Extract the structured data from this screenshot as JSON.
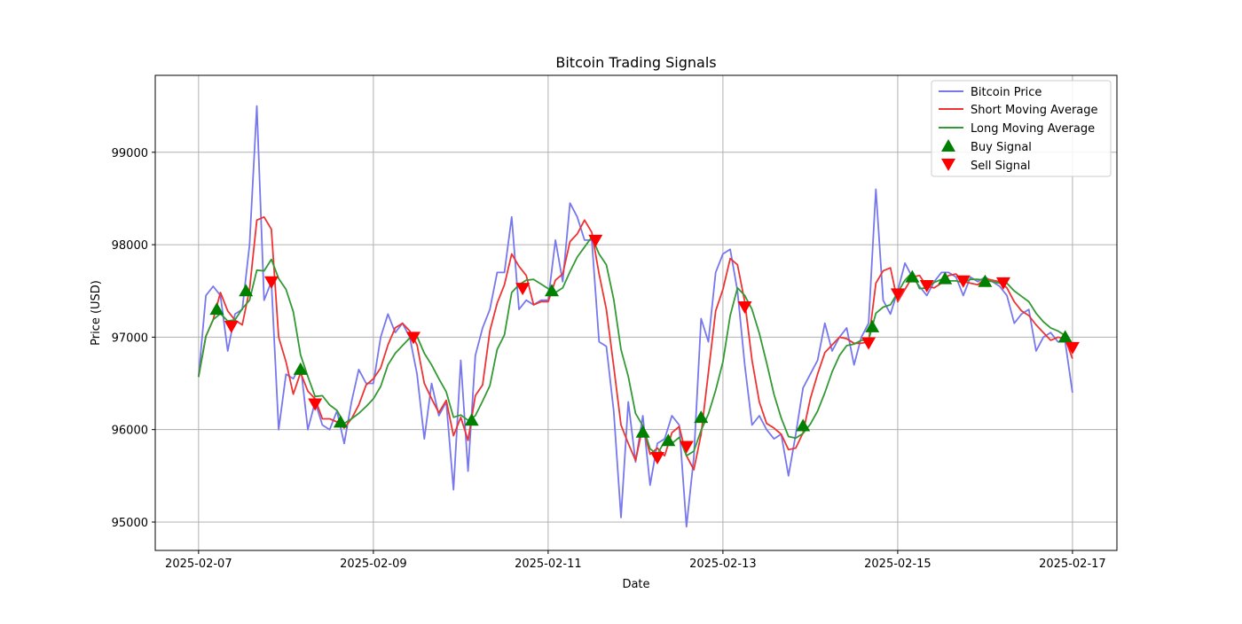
{
  "chart_data": {
    "type": "line",
    "title": "Bitcoin Trading Signals",
    "xlabel": "Date",
    "ylabel": "Price (USD)",
    "x_unit": "hours since 2025-02-07 00:00",
    "xlim": [
      -11.9,
      252.2
    ],
    "ylim": [
      94693,
      99832
    ],
    "grid": true,
    "legend_position": "top-right",
    "x_ticks": [
      {
        "value": 0,
        "label": "2025-02-07"
      },
      {
        "value": 48,
        "label": "2025-02-09"
      },
      {
        "value": 96,
        "label": "2025-02-11"
      },
      {
        "value": 144,
        "label": "2025-02-13"
      },
      {
        "value": 192,
        "label": "2025-02-15"
      },
      {
        "value": 240,
        "label": "2025-02-17"
      }
    ],
    "y_ticks": [
      {
        "value": 95000,
        "label": "95000"
      },
      {
        "value": 96000,
        "label": "96000"
      },
      {
        "value": 97000,
        "label": "97000"
      },
      {
        "value": 98000,
        "label": "98000"
      },
      {
        "value": 99000,
        "label": "99000"
      }
    ],
    "price": {
      "name": "Bitcoin Price",
      "color": "#7777ee",
      "x_step": 2,
      "values": [
        96570,
        97450,
        97550,
        97450,
        96850,
        97250,
        97300,
        98000,
        99500,
        97400,
        97600,
        96000,
        96600,
        96550,
        96700,
        96000,
        96300,
        96050,
        96000,
        96200,
        95850,
        96300,
        96650,
        96500,
        96500,
        97000,
        97250,
        97050,
        97150,
        97000,
        96600,
        95900,
        96500,
        96150,
        96300,
        95350,
        96750,
        95550,
        96800,
        97100,
        97300,
        97700,
        97700,
        98300,
        97300,
        97400,
        97350,
        97400,
        97400,
        98050,
        97600,
        98450,
        98300,
        98050,
        98050,
        96950,
        96900,
        96200,
        95050,
        96300,
        95650,
        96150,
        95400,
        95850,
        95900,
        96150,
        96050,
        94950,
        95700,
        97200,
        96950,
        97700,
        97900,
        97950,
        97500,
        96700,
        96050,
        96150,
        96000,
        95900,
        95950,
        95500,
        95950,
        96450,
        96600,
        96750,
        97150,
        96850,
        97000,
        97100,
        96700,
        97000,
        97150,
        98600,
        97400,
        97250,
        97500,
        97800,
        97650,
        97550,
        97450,
        97600,
        97700,
        97700,
        97650,
        97450,
        97650,
        97600,
        97650,
        97600,
        97550,
        97450,
        97150,
        97250,
        97300,
        96850,
        97000,
        97050,
        96950,
        96950,
        96400
      ]
    },
    "short_ma": {
      "name": "Short Moving Average",
      "color": "#ee3333"
    },
    "long_ma": {
      "name": "Long Moving Average",
      "color": "#339933"
    },
    "buy_signals": {
      "name": "Buy Signal",
      "color": "#008000",
      "points": [
        [
          5,
          97300
        ],
        [
          13,
          97500
        ],
        [
          28,
          96650
        ],
        [
          39,
          96080
        ],
        [
          75,
          96100
        ],
        [
          97,
          97500
        ],
        [
          122,
          95970
        ],
        [
          129,
          95880
        ],
        [
          138,
          96130
        ],
        [
          166,
          96040
        ],
        [
          185,
          97110
        ],
        [
          196,
          97650
        ],
        [
          205,
          97630
        ],
        [
          216,
          97600
        ],
        [
          238,
          97000
        ]
      ]
    },
    "sell_signals": {
      "name": "Sell Signal",
      "color": "#ff0000",
      "points": [
        [
          9,
          97120
        ],
        [
          20,
          97600
        ],
        [
          32,
          96280
        ],
        [
          59,
          97000
        ],
        [
          89,
          97530
        ],
        [
          109,
          98050
        ],
        [
          126,
          95700
        ],
        [
          134,
          95820
        ],
        [
          150,
          97330
        ],
        [
          184,
          96940
        ],
        [
          192,
          97470
        ],
        [
          200,
          97560
        ],
        [
          210,
          97610
        ],
        [
          221,
          97590
        ],
        [
          240,
          96890
        ]
      ]
    }
  }
}
